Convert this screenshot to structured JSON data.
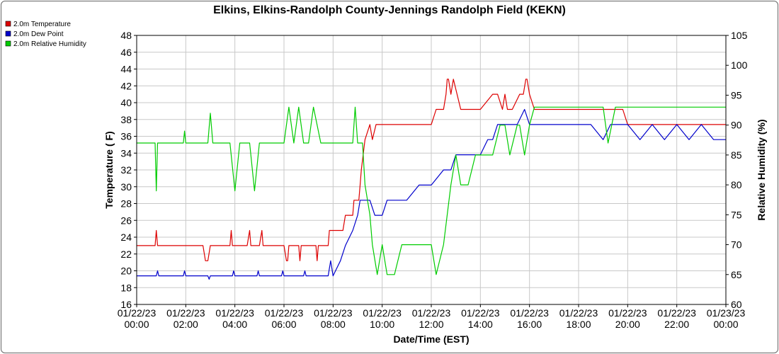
{
  "chart_data": {
    "type": "line",
    "title": "Elkins, Elkins-Randolph County-Jennings Randolph Field (KEKN)",
    "xlabel": "Date/Time (EST)",
    "ylabel_left": "Temperature ( F)",
    "ylabel_right": "Relative Humidity (%)",
    "xlim": [
      0,
      24
    ],
    "ylim_left": [
      16,
      48
    ],
    "ylim_right": [
      60,
      105
    ],
    "y_left_ticks": [
      "16",
      "18",
      "20",
      "22",
      "24",
      "26",
      "28",
      "30",
      "32",
      "34",
      "36",
      "38",
      "40",
      "42",
      "44",
      "46",
      "48"
    ],
    "y_right_ticks": [
      "60",
      "65",
      "70",
      "75",
      "80",
      "85",
      "90",
      "95",
      "100",
      "105"
    ],
    "x_tick_positions": [
      0,
      2,
      4,
      6,
      8,
      10,
      12,
      14,
      16,
      18,
      20,
      22,
      24
    ],
    "x_tick_labels": [
      [
        "01/22/23",
        "00:00"
      ],
      [
        "01/22/23",
        "02:00"
      ],
      [
        "01/22/23",
        "04:00"
      ],
      [
        "01/22/23",
        "06:00"
      ],
      [
        "01/22/23",
        "08:00"
      ],
      [
        "01/22/23",
        "10:00"
      ],
      [
        "01/22/23",
        "12:00"
      ],
      [
        "01/22/23",
        "14:00"
      ],
      [
        "01/22/23",
        "16:00"
      ],
      [
        "01/22/23",
        "18:00"
      ],
      [
        "01/22/23",
        "20:00"
      ],
      [
        "01/22/23",
        "22:00"
      ],
      [
        "01/23/23",
        "00:00"
      ]
    ],
    "grid": true,
    "legend_position": "top-left",
    "series": [
      {
        "name": "2.0m Temperature",
        "color": "#dd0000",
        "axis": "left",
        "x": [
          0,
          0.75,
          0.8,
          0.85,
          1.5,
          2.5,
          2.7,
          2.8,
          2.9,
          3.0,
          3.1,
          3.5,
          3.8,
          3.85,
          3.9,
          4.5,
          4.6,
          4.65,
          4.7,
          5.0,
          5.1,
          5.15,
          5.2,
          6.0,
          6.1,
          6.15,
          6.2,
          6.6,
          6.65,
          6.7,
          7.0,
          7.3,
          7.35,
          7.4,
          7.8,
          7.85,
          7.9,
          8.4,
          8.5,
          8.8,
          8.85,
          9.0,
          9.05,
          9.1,
          9.15,
          9.3,
          9.5,
          9.6,
          9.75,
          9.8,
          10.0,
          10.5,
          11.0,
          11.5,
          11.75,
          12.0,
          12.2,
          12.5,
          12.6,
          12.65,
          12.7,
          12.8,
          12.9,
          13.2,
          13.5,
          13.8,
          14.0,
          14.5,
          14.7,
          14.9,
          15.0,
          15.1,
          15.3,
          15.6,
          15.75,
          15.85,
          15.9,
          16.0,
          16.2,
          16.4,
          16.5,
          17.0,
          17.3,
          17.5,
          17.8,
          18.0,
          18.5,
          19.0,
          19.5,
          19.7,
          19.8,
          20.0,
          20.5,
          21.0,
          21.5,
          22.0,
          22.5,
          23.0,
          23.5,
          23.8,
          24.0
        ],
        "y": [
          23,
          23,
          24.8,
          23,
          23,
          23,
          23,
          21.2,
          21.2,
          23,
          23,
          23,
          23,
          24.8,
          23,
          23,
          24.8,
          23,
          23,
          23,
          24.8,
          23,
          23,
          23,
          21.2,
          21.2,
          23,
          23,
          21.2,
          23,
          23,
          23,
          21.2,
          23,
          23,
          24.8,
          24.8,
          24.8,
          26.6,
          26.6,
          28.4,
          28.4,
          28.4,
          30.2,
          32.0,
          35.6,
          37.4,
          35.6,
          37.4,
          37.4,
          37.4,
          37.4,
          37.4,
          37.4,
          37.4,
          37.4,
          39.2,
          39.2,
          41.0,
          42.8,
          42.8,
          41.0,
          42.8,
          39.2,
          39.2,
          39.2,
          39.2,
          41.0,
          41.0,
          39.2,
          41.0,
          39.2,
          39.2,
          41.0,
          41.0,
          42.8,
          42.8,
          41.0,
          39.2,
          39.2,
          39.2,
          39.2,
          39.2,
          39.2,
          39.2,
          39.2,
          39.2,
          39.2,
          39.2,
          39.2,
          39.2,
          37.4,
          37.4,
          37.4,
          37.4,
          37.4,
          37.4,
          37.4,
          37.4,
          37.4,
          37.4
        ]
      },
      {
        "name": "2.0m Dew Point",
        "color": "#0000cc",
        "axis": "left",
        "x": [
          0,
          0.8,
          0.85,
          0.9,
          1.9,
          1.95,
          2.0,
          2.9,
          2.95,
          3.0,
          3.9,
          3.95,
          4.0,
          4.9,
          4.95,
          5.0,
          5.9,
          5.95,
          6.0,
          6.8,
          6.85,
          6.9,
          7.8,
          7.9,
          8.0,
          8.3,
          8.5,
          8.8,
          9.0,
          9.1,
          9.3,
          9.5,
          9.7,
          10.0,
          10.2,
          10.5,
          10.8,
          11.0,
          11.5,
          11.8,
          12.0,
          12.5,
          12.8,
          13.0,
          13.3,
          13.5,
          14.0,
          14.3,
          14.5,
          14.7,
          15.0,
          15.1,
          15.5,
          15.8,
          16.0,
          16.5,
          17.0,
          17.5,
          18.0,
          18.5,
          19.0,
          19.3,
          19.5,
          19.8,
          20.0,
          20.5,
          21.0,
          21.5,
          22.0,
          22.5,
          23.0,
          23.5,
          24.0
        ],
        "y": [
          19.4,
          19.4,
          20.0,
          19.4,
          19.4,
          20.0,
          19.4,
          19.4,
          19.0,
          19.4,
          19.4,
          20.0,
          19.4,
          19.4,
          20.0,
          19.4,
          19.4,
          20.0,
          19.4,
          19.4,
          20.0,
          19.4,
          19.4,
          21.2,
          19.4,
          21.2,
          23.0,
          24.8,
          26.6,
          28.4,
          28.4,
          28.4,
          26.6,
          26.6,
          28.4,
          28.4,
          28.4,
          28.4,
          30.2,
          30.2,
          30.2,
          32.0,
          32.0,
          33.8,
          33.8,
          33.8,
          33.8,
          35.6,
          35.6,
          37.4,
          37.4,
          37.4,
          37.4,
          39.2,
          37.4,
          37.4,
          37.4,
          37.4,
          37.4,
          37.4,
          35.6,
          37.4,
          37.4,
          37.4,
          37.4,
          35.6,
          37.4,
          35.6,
          37.4,
          35.6,
          37.4,
          35.6,
          35.6
        ]
      },
      {
        "name": "2.0m Relative Humidity",
        "color": "#00cc00",
        "axis": "right",
        "x": [
          0,
          0.75,
          0.8,
          0.85,
          1.5,
          1.9,
          1.95,
          2.0,
          2.9,
          3.0,
          3.1,
          3.5,
          3.8,
          4.0,
          4.2,
          4.5,
          4.6,
          4.8,
          5.0,
          5.2,
          5.5,
          5.8,
          6.0,
          6.2,
          6.4,
          6.6,
          6.8,
          7.0,
          7.2,
          7.5,
          7.8,
          8.0,
          8.2,
          8.5,
          8.8,
          8.9,
          9.0,
          9.2,
          9.3,
          9.5,
          9.6,
          9.8,
          10.0,
          10.2,
          10.5,
          10.8,
          11.0,
          11.2,
          11.5,
          11.8,
          12.0,
          12.2,
          12.5,
          12.8,
          13.0,
          13.2,
          13.5,
          13.8,
          14.0,
          14.2,
          14.5,
          14.8,
          15.0,
          15.2,
          15.5,
          15.6,
          15.8,
          16.0,
          16.2,
          16.5,
          17.0,
          17.2,
          17.5,
          17.8,
          18.0,
          18.5,
          19.0,
          19.2,
          19.5,
          20.0,
          20.5,
          21.0,
          21.5,
          22.0,
          22.5,
          23.0,
          23.5,
          23.8,
          24.0
        ],
        "y": [
          87,
          87,
          79,
          87,
          87,
          87,
          89,
          87,
          87,
          92,
          87,
          87,
          87,
          79,
          87,
          87,
          87,
          79,
          87,
          87,
          87,
          87,
          87,
          93,
          87,
          93,
          87,
          87,
          93,
          87,
          87,
          87,
          87,
          87,
          87,
          93,
          87,
          87,
          80,
          75,
          70,
          65,
          70,
          65,
          65,
          70,
          70,
          70,
          70,
          70,
          70,
          65,
          70,
          80,
          85,
          80,
          80,
          85,
          85,
          85,
          85,
          90,
          90,
          85,
          90,
          90,
          85,
          90,
          93,
          93,
          93,
          93,
          93,
          93,
          93,
          93,
          93,
          87,
          93,
          93,
          93,
          93,
          93,
          93,
          93,
          93,
          93,
          93,
          93
        ]
      }
    ]
  }
}
